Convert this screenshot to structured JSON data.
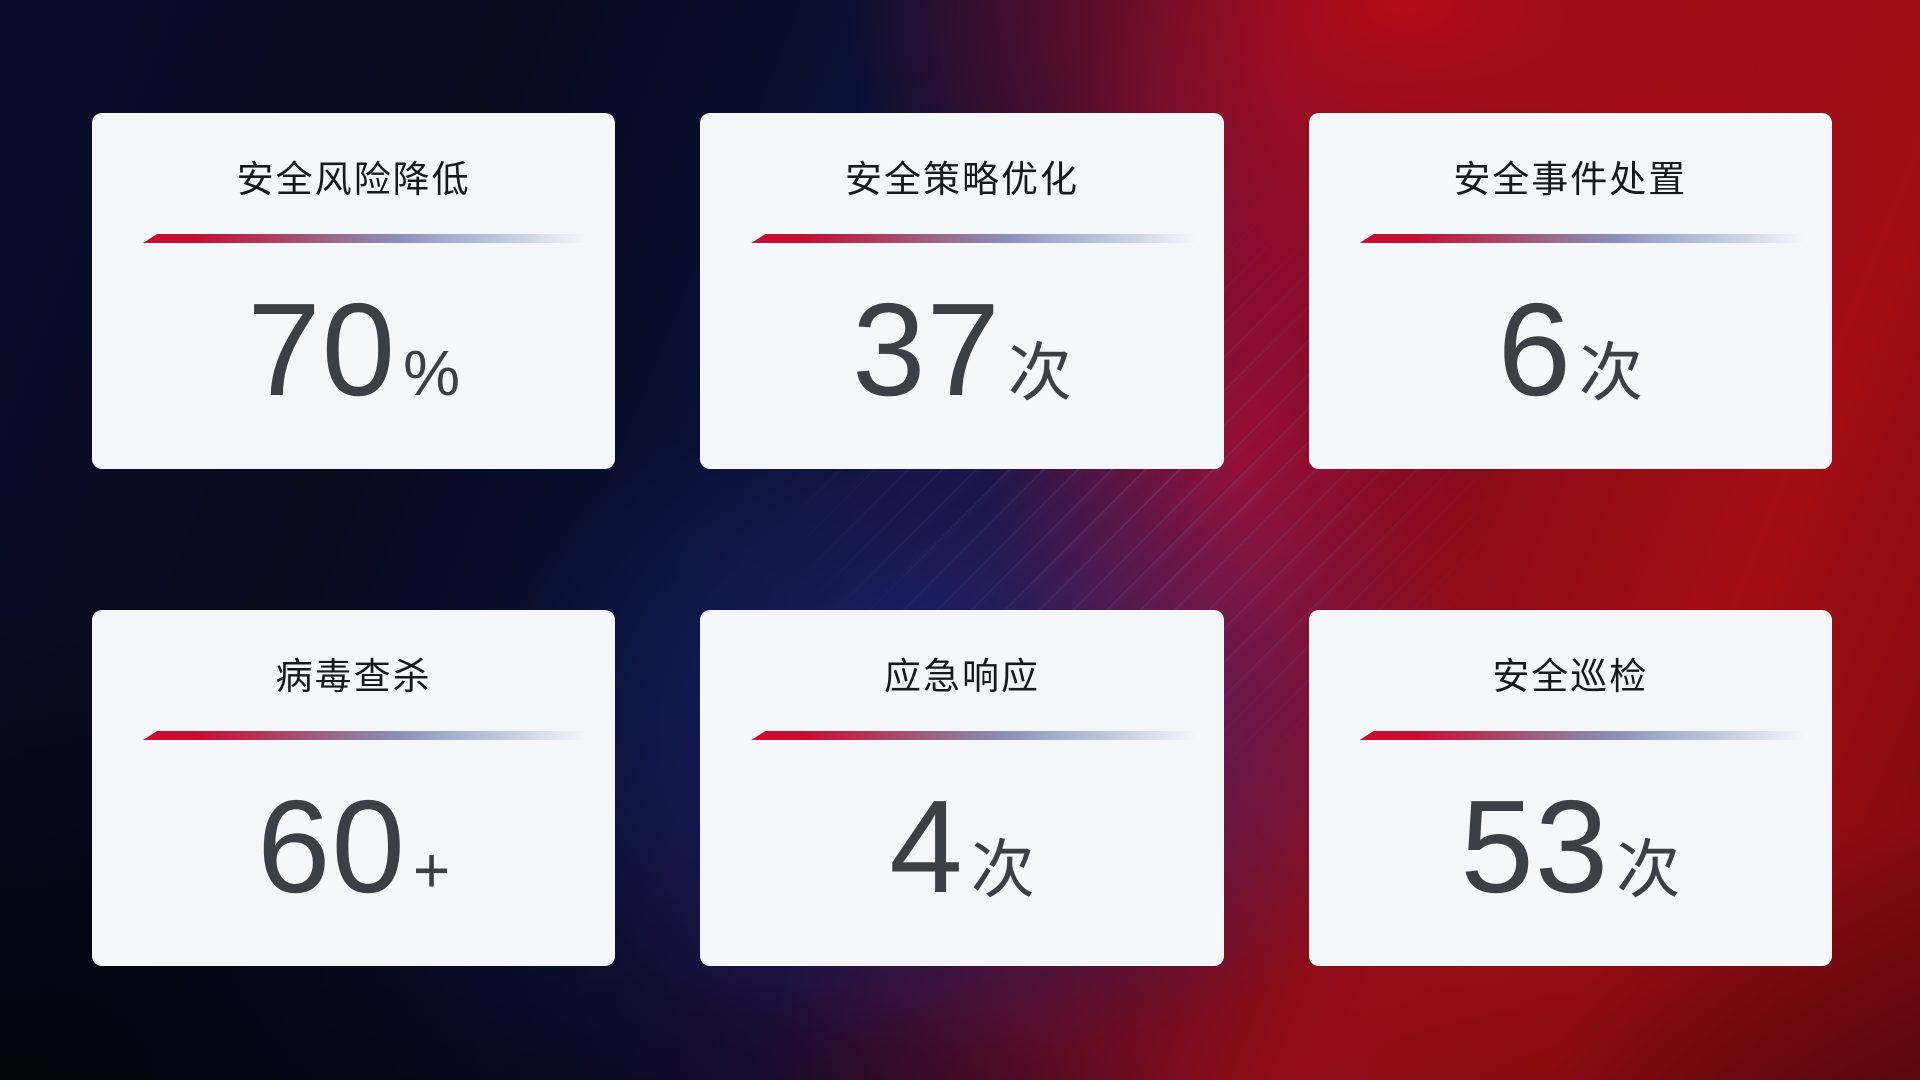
{
  "dashboard": {
    "cards": [
      {
        "title": "安全风险降低",
        "value": "70",
        "suffix": "%"
      },
      {
        "title": "安全策略优化",
        "value": "37",
        "suffix": "次"
      },
      {
        "title": "安全事件处置",
        "value": "6",
        "suffix": "次"
      },
      {
        "title": "病毒查杀",
        "value": "60",
        "suffix": "+"
      },
      {
        "title": "应急响应",
        "value": "4",
        "suffix": "次"
      },
      {
        "title": "安全巡检",
        "value": "53",
        "suffix": "次"
      }
    ],
    "colors": {
      "card_background": "#f5f6fa",
      "title_text": "#17181c",
      "value_text": "#3c3f45",
      "divider_start": "#c50e33",
      "divider_mid": "#8d8fb9",
      "divider_end": "#d2daea",
      "background_navy": "#0a0e2a",
      "background_red": "#a30d13",
      "background_crimson_band": "#c80e3a"
    }
  }
}
